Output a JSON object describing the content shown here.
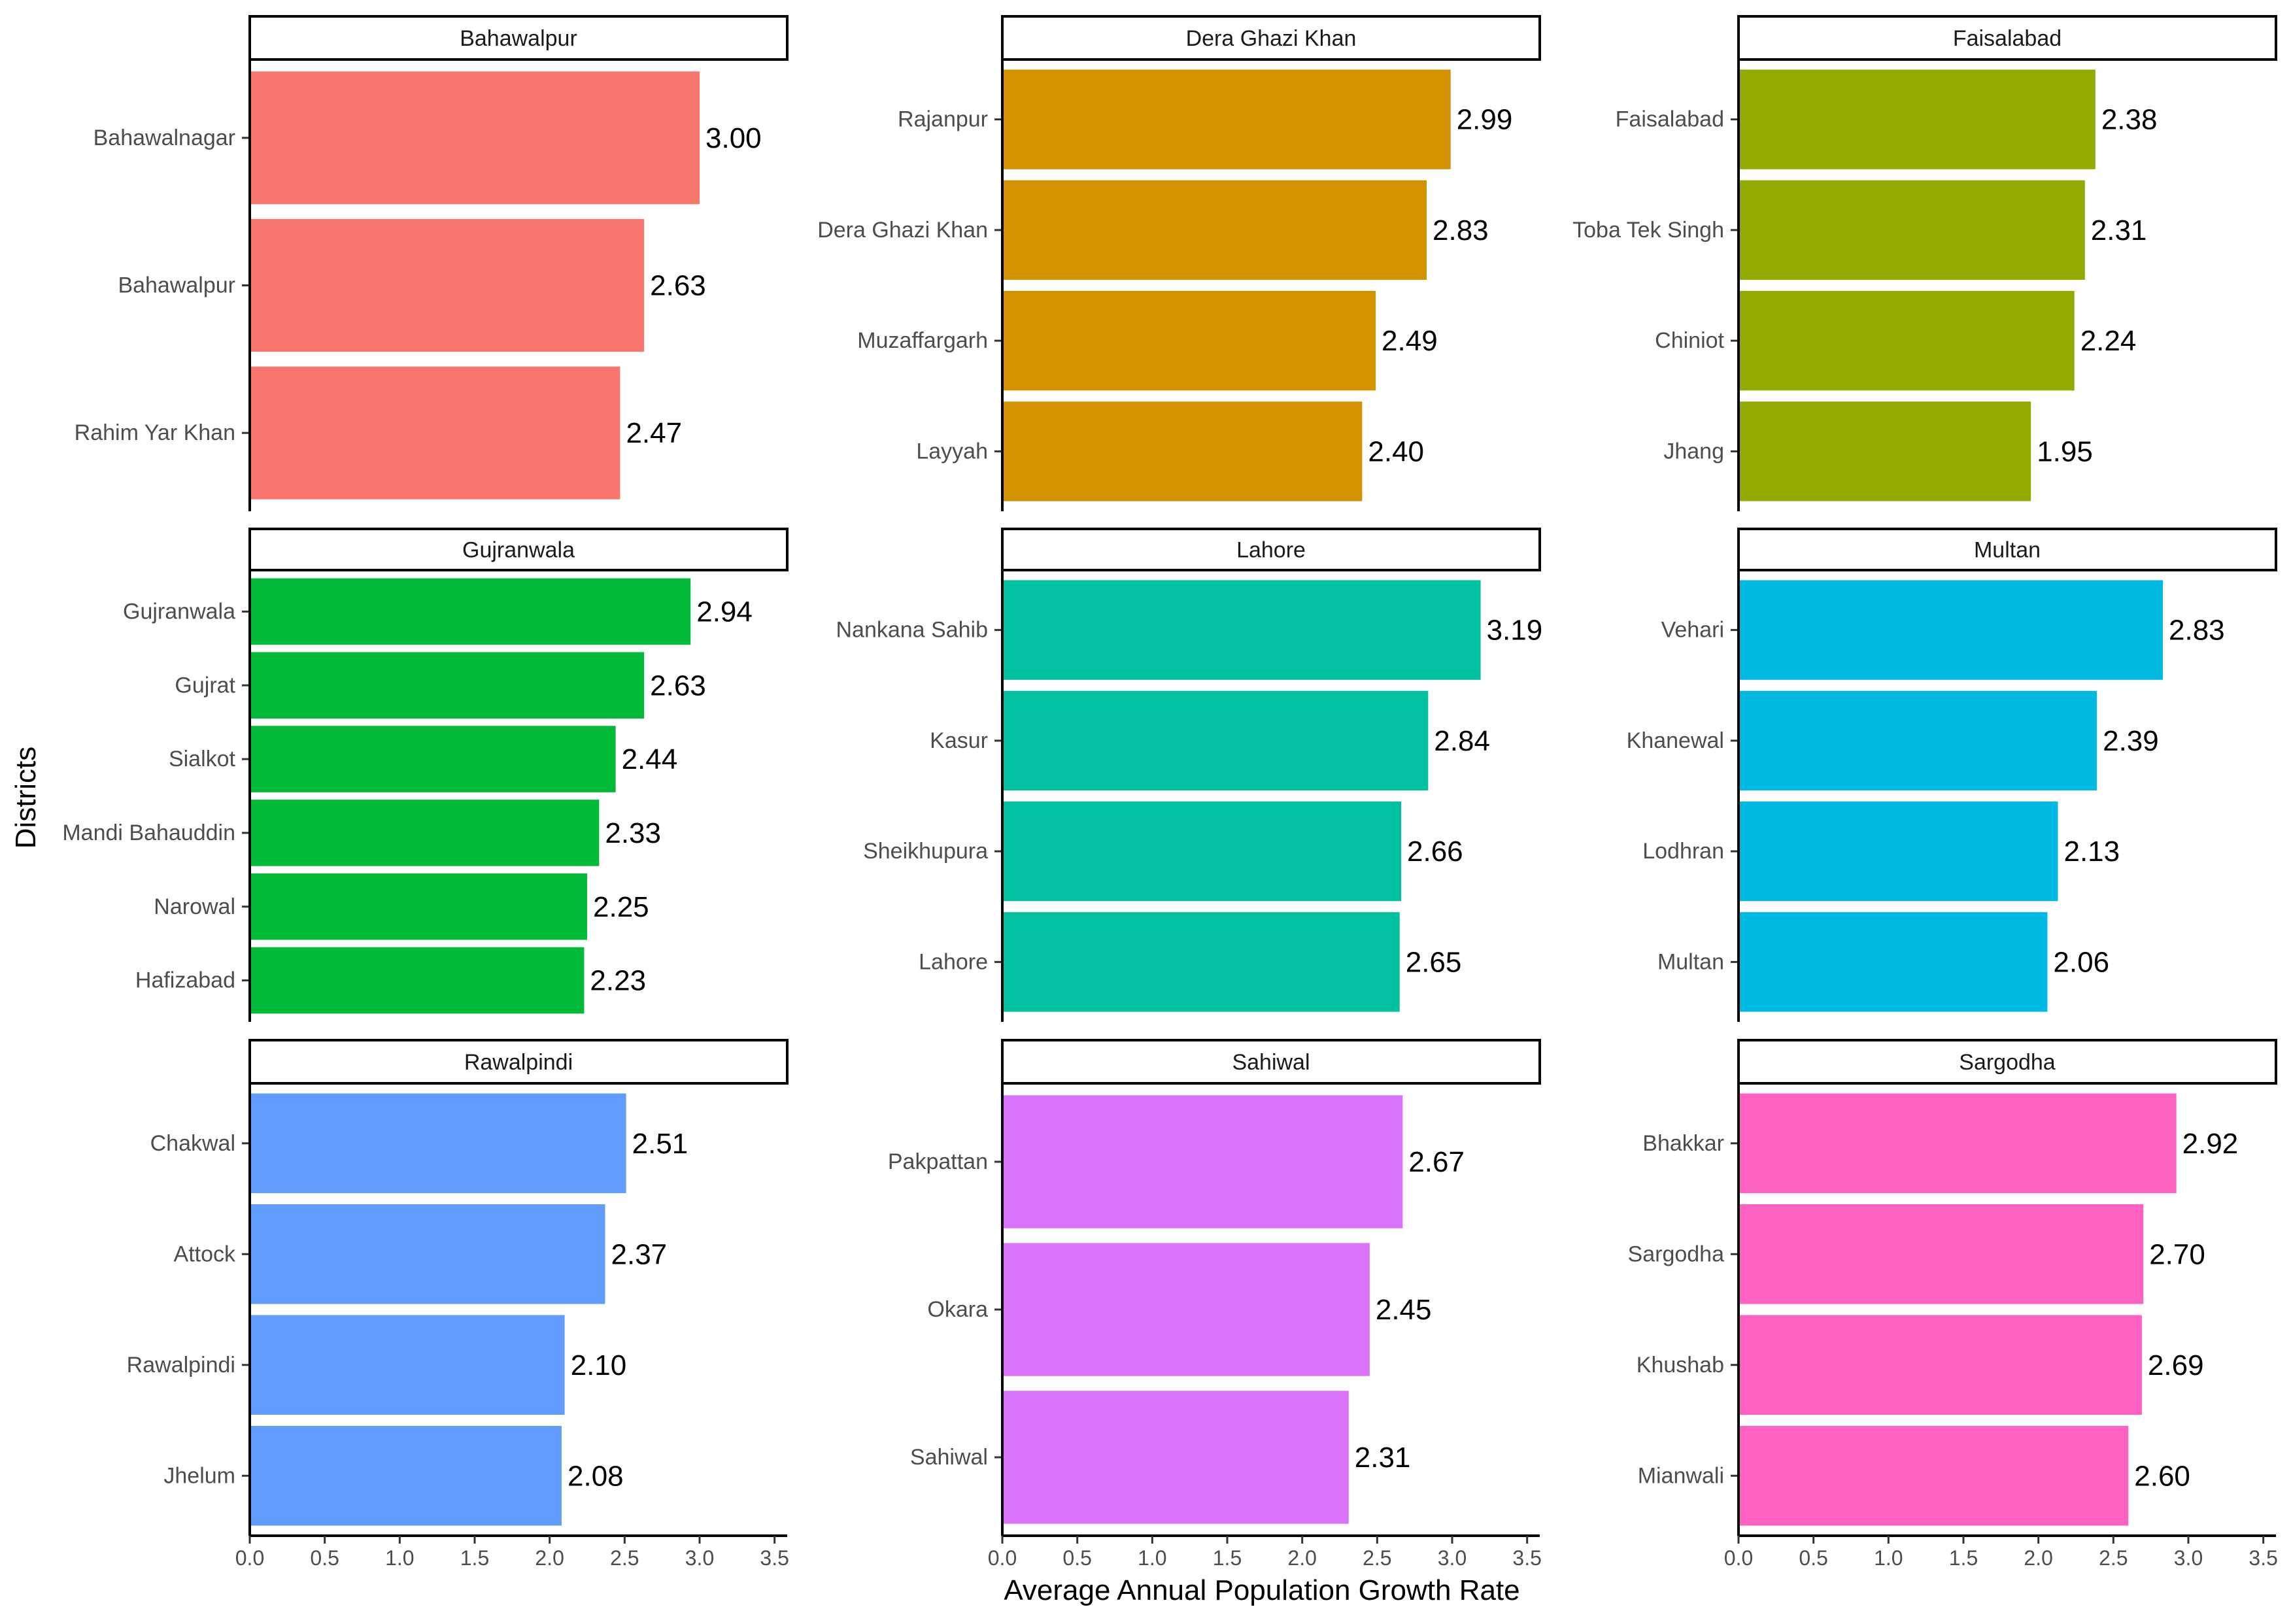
{
  "chart_data": {
    "type": "bar",
    "orientation": "horizontal",
    "xlabel": "Average Annual Population Growth Rate",
    "ylabel": "Districts",
    "xlim": [
      0,
      3.6
    ],
    "x_ticks": [
      "0.0",
      "0.5",
      "1.0",
      "1.5",
      "2.0",
      "2.5",
      "3.0",
      "3.5"
    ],
    "panels": [
      {
        "title": "Bahawalpur",
        "color": "#F8766D",
        "categories": [
          "Bahawalnagar",
          "Bahawalpur",
          "Rahim Yar Khan"
        ],
        "values": [
          3.0,
          2.63,
          2.47
        ],
        "labels": [
          "3.00",
          "2.63",
          "2.47"
        ]
      },
      {
        "title": "Dera Ghazi Khan",
        "color": "#D39200",
        "categories": [
          "Rajanpur",
          "Dera Ghazi Khan",
          "Muzaffargarh",
          "Layyah"
        ],
        "values": [
          2.99,
          2.83,
          2.49,
          2.4
        ],
        "labels": [
          "2.99",
          "2.83",
          "2.49",
          "2.40"
        ]
      },
      {
        "title": "Faisalabad",
        "color": "#93AA00",
        "categories": [
          "Faisalabad",
          "Toba Tek Singh",
          "Chiniot",
          "Jhang"
        ],
        "values": [
          2.38,
          2.31,
          2.24,
          1.95
        ],
        "labels": [
          "2.38",
          "2.31",
          "2.24",
          "1.95"
        ]
      },
      {
        "title": "Gujranwala",
        "color": "#00BA38",
        "categories": [
          "Gujranwala",
          "Gujrat",
          "Sialkot",
          "Mandi Bahauddin",
          "Narowal",
          "Hafizabad"
        ],
        "values": [
          2.94,
          2.63,
          2.44,
          2.33,
          2.25,
          2.23
        ],
        "labels": [
          "2.94",
          "2.63",
          "2.44",
          "2.33",
          "2.25",
          "2.23"
        ]
      },
      {
        "title": "Lahore",
        "color": "#00C19F",
        "categories": [
          "Nankana Sahib",
          "Kasur",
          "Sheikhupura",
          "Lahore"
        ],
        "values": [
          3.19,
          2.84,
          2.66,
          2.65
        ],
        "labels": [
          "3.19",
          "2.84",
          "2.66",
          "2.65"
        ]
      },
      {
        "title": "Multan",
        "color": "#00B9E3",
        "categories": [
          "Vehari",
          "Khanewal",
          "Lodhran",
          "Multan"
        ],
        "values": [
          2.83,
          2.39,
          2.13,
          2.06
        ],
        "labels": [
          "2.83",
          "2.39",
          "2.13",
          "2.06"
        ]
      },
      {
        "title": "Rawalpindi",
        "color": "#619CFF",
        "categories": [
          "Chakwal",
          "Attock",
          "Rawalpindi",
          "Jhelum"
        ],
        "values": [
          2.51,
          2.37,
          2.1,
          2.08
        ],
        "labels": [
          "2.51",
          "2.37",
          "2.10",
          "2.08"
        ]
      },
      {
        "title": "Sahiwal",
        "color": "#DB72FB",
        "categories": [
          "Pakpattan",
          "Okara",
          "Sahiwal"
        ],
        "values": [
          2.67,
          2.45,
          2.31
        ],
        "labels": [
          "2.67",
          "2.45",
          "2.31"
        ]
      },
      {
        "title": "Sargodha",
        "color": "#FF61C3",
        "categories": [
          "Bhakkar",
          "Sargodha",
          "Khushab",
          "Mianwali"
        ],
        "values": [
          2.92,
          2.7,
          2.69,
          2.6
        ],
        "labels": [
          "2.92",
          "2.70",
          "2.69",
          "2.60"
        ]
      }
    ]
  }
}
